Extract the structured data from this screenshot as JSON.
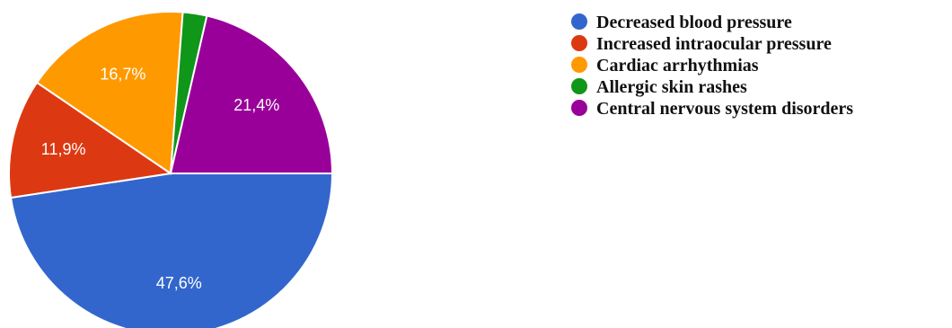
{
  "chart_data": {
    "type": "pie",
    "title": "",
    "legend_position": "right",
    "start_angle_note": "first slice begins at 3 o'clock, clockwise",
    "slices": [
      {
        "label": "Decreased blood pressure",
        "value": 47.6,
        "value_label": "47,6%",
        "color": "#3366cc"
      },
      {
        "label": "Increased intraocular pressure",
        "value": 11.9,
        "value_label": "11,9%",
        "color": "#dc3912"
      },
      {
        "label": "Cardiac arrhythmias",
        "value": 16.7,
        "value_label": "16,7%",
        "color": "#ff9900"
      },
      {
        "label": "Allergic skin rashes",
        "value": 2.4,
        "value_label": "",
        "color": "#109618"
      },
      {
        "label": "Central nervous system disorders",
        "value": 21.4,
        "value_label": "21,4%",
        "color": "#990099"
      }
    ]
  }
}
